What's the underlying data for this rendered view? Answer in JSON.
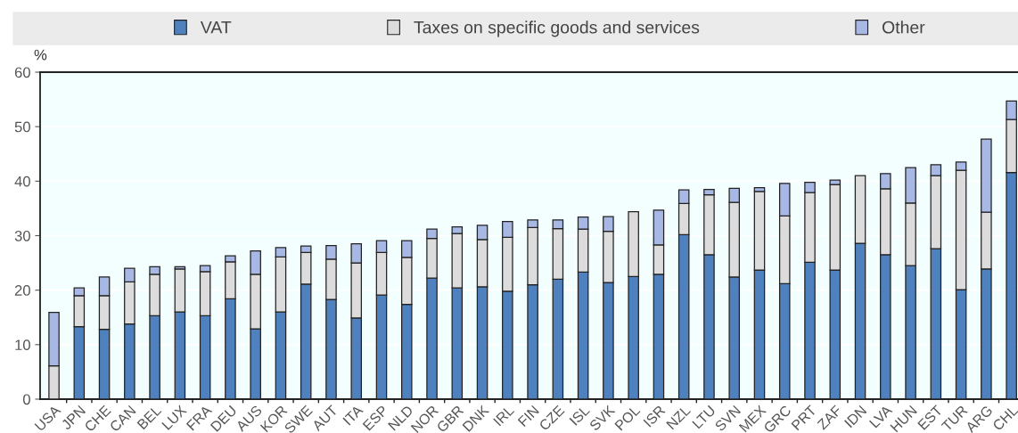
{
  "chart_data": {
    "type": "bar",
    "stacked": true,
    "ylabel": "%",
    "categories": [
      "USA",
      "JPN",
      "CHE",
      "CAN",
      "BEL",
      "LUX",
      "FRA",
      "DEU",
      "AUS",
      "KOR",
      "SWE",
      "AUT",
      "ITA",
      "ESP",
      "NLD",
      "NOR",
      "GBR",
      "DNK",
      "IRL",
      "FIN",
      "CZE",
      "ISL",
      "SVK",
      "POL",
      "ISR",
      "NZL",
      "LTU",
      "SVN",
      "MEX",
      "GRC",
      "PRT",
      "ZAF",
      "IDN",
      "LVA",
      "HUN",
      "EST",
      "TUR",
      "ARG",
      "CHL"
    ],
    "series": [
      {
        "name": "VAT",
        "color": "#4e81bd",
        "values": [
          0,
          13.3,
          12.8,
          13.8,
          15.3,
          16.0,
          15.3,
          18.4,
          12.9,
          16.0,
          21.1,
          18.3,
          14.9,
          19.1,
          17.4,
          22.2,
          20.4,
          20.6,
          19.8,
          21.0,
          22.0,
          23.3,
          21.4,
          22.5,
          22.9,
          30.2,
          26.5,
          22.4,
          23.7,
          21.2,
          25.1,
          23.7,
          28.6,
          26.5,
          24.5,
          27.6,
          20.1,
          23.9,
          41.6
        ]
      },
      {
        "name": "Taxes on specific goods and services",
        "color": "#dcdcdc",
        "values": [
          6.1,
          5.7,
          6.2,
          7.7,
          7.6,
          7.9,
          8.1,
          6.8,
          10.0,
          10.1,
          5.8,
          7.4,
          10.1,
          7.8,
          8.6,
          7.3,
          10.0,
          8.7,
          9.9,
          10.5,
          9.3,
          7.9,
          9.4,
          11.9,
          5.4,
          5.7,
          11.0,
          13.7,
          14.4,
          12.4,
          12.8,
          15.7,
          12.4,
          12.1,
          11.5,
          13.4,
          21.9,
          10.4,
          9.7
        ]
      },
      {
        "name": "Other",
        "color": "#a7b8e4",
        "values": [
          9.8,
          1.4,
          3.4,
          2.5,
          1.4,
          0.4,
          1.1,
          1.1,
          4.3,
          1.7,
          1.2,
          2.5,
          3.5,
          2.2,
          3.1,
          1.7,
          1.2,
          2.6,
          2.9,
          1.4,
          1.6,
          2.2,
          2.7,
          null,
          6.4,
          2.5,
          1.0,
          2.6,
          0.7,
          6.0,
          1.9,
          0.8,
          null,
          2.8,
          6.5,
          2.0,
          1.5,
          13.4,
          3.4
        ]
      }
    ],
    "ylim": [
      0,
      60
    ],
    "yticks": [
      0,
      10,
      20,
      30,
      40,
      50,
      60
    ],
    "grid": "y",
    "legend": "top"
  }
}
